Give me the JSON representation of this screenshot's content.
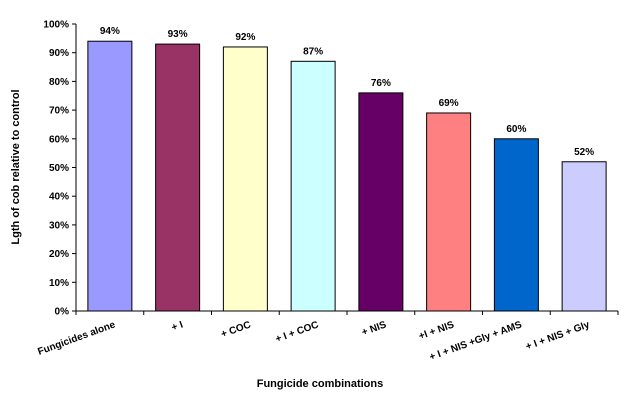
{
  "chart_data": {
    "type": "bar",
    "title": "",
    "xlabel": "Fungicide combinations",
    "ylabel": "Lgth of cob relative to control",
    "ylim": [
      0,
      100
    ],
    "y_ticks": [
      "0%",
      "10%",
      "20%",
      "30%",
      "40%",
      "50%",
      "60%",
      "70%",
      "80%",
      "90%",
      "100%"
    ],
    "grid": false,
    "legend": "none",
    "categories": [
      "Fungicides alone",
      "+ I",
      "+ COC",
      "+ I + COC",
      "+ NIS",
      "+I + NIS",
      "+ I + NIS +Gly + AMS",
      "+ I + NIS + Gly"
    ],
    "values": [
      94,
      93,
      92,
      87,
      76,
      69,
      60,
      52
    ],
    "data_labels": [
      "94%",
      "93%",
      "92%",
      "87%",
      "76%",
      "69%",
      "60%",
      "52%"
    ],
    "colors": [
      "#9999ff",
      "#993366",
      "#ffffcc",
      "#ccffff",
      "#660066",
      "#ff8080",
      "#0066cc",
      "#ccccff"
    ]
  }
}
